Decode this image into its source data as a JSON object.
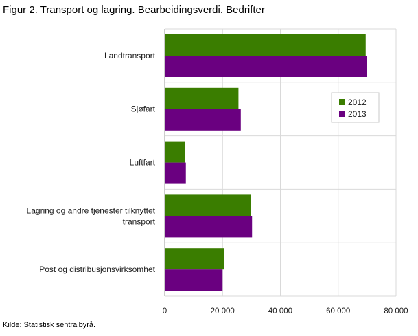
{
  "figure": {
    "title": "Figur 2. Transport og lagring. Bearbeidingsverdi. Bedrifter",
    "source": "Kilde: Statistisk sentralbyrå."
  },
  "chart_data": {
    "type": "bar",
    "orientation": "horizontal",
    "title": "Figur 2. Transport og lagring. Bearbeidingsverdi. Bedrifter",
    "xlabel": "",
    "ylabel": "",
    "categories": [
      "Landtransport",
      "Sjøfart",
      "Luftfart",
      "Lagring og andre tjenester tilknyttet transport",
      "Post og distribusjonsvirksomhet"
    ],
    "category_lines": [
      [
        "Landtransport"
      ],
      [
        "Sjøfart"
      ],
      [
        "Luftfart"
      ],
      [
        "Lagring og andre tjenester tilknyttet",
        "transport"
      ],
      [
        "Post og distribusjonsvirksomhet"
      ]
    ],
    "series": [
      {
        "name": "2012",
        "color": "#3a7d00",
        "values": [
          69500,
          25500,
          7000,
          29800,
          20500
        ]
      },
      {
        "name": "2013",
        "color": "#6a0080",
        "values": [
          70000,
          26300,
          7300,
          30200,
          20000
        ]
      }
    ],
    "xlim": [
      0,
      80000
    ],
    "xticks": [
      0,
      20000,
      40000,
      60000,
      80000
    ],
    "xtick_labels": [
      "0",
      "20 000",
      "40 000",
      "60 000",
      "80 000"
    ],
    "grid": true,
    "legend": {
      "position": "top-right",
      "entries": [
        "2012",
        "2013"
      ]
    }
  }
}
